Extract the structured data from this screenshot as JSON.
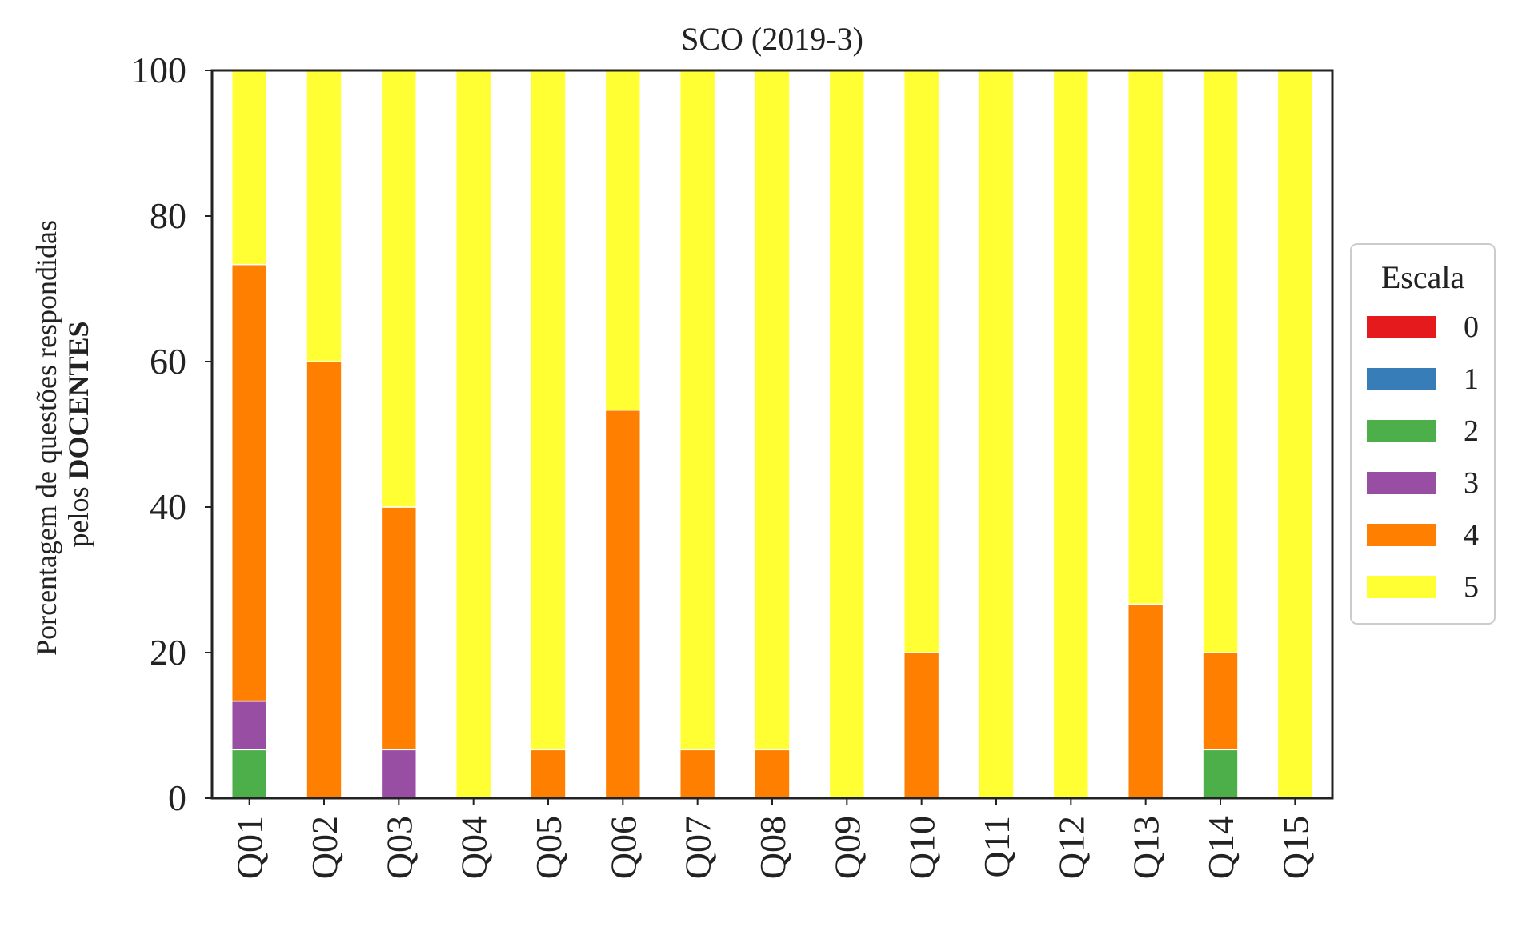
{
  "chart_data": {
    "type": "bar",
    "stacked": true,
    "title": "SCO (2019-3)",
    "ylabel_line1": "Porcentagem de questões respondidas",
    "ylabel_line2_prefix": "pelos ",
    "ylabel_line2_bold": "DOCENTES",
    "xlabel": "",
    "ylim": [
      0,
      100
    ],
    "yticks": [
      0,
      20,
      40,
      60,
      80,
      100
    ],
    "grid": false,
    "legend": {
      "title": "Escala",
      "placement": "center-right, outside plot"
    },
    "categories": [
      "Q01",
      "Q02",
      "Q03",
      "Q04",
      "Q05",
      "Q06",
      "Q07",
      "Q08",
      "Q09",
      "Q10",
      "Q11",
      "Q12",
      "Q13",
      "Q14",
      "Q15"
    ],
    "series": [
      {
        "name": "0",
        "color": "#e41a1c",
        "values": [
          0,
          0,
          0,
          0,
          0,
          0,
          0,
          0,
          0,
          0,
          0,
          0,
          0,
          0,
          0
        ]
      },
      {
        "name": "1",
        "color": "#377eb8",
        "values": [
          0,
          0,
          0,
          0,
          0,
          0,
          0,
          0,
          0,
          0,
          0,
          0,
          0,
          0,
          0
        ]
      },
      {
        "name": "2",
        "color": "#4daf4a",
        "values": [
          6.67,
          0,
          0,
          0,
          0,
          0,
          0,
          0,
          0,
          0,
          0,
          0,
          0,
          6.67,
          0
        ]
      },
      {
        "name": "3",
        "color": "#984ea3",
        "values": [
          6.67,
          0,
          6.67,
          0,
          0,
          0,
          0,
          0,
          0,
          0,
          0,
          0,
          0,
          0,
          0
        ]
      },
      {
        "name": "4",
        "color": "#ff7f00",
        "values": [
          60,
          60,
          33.33,
          0,
          6.67,
          53.33,
          6.67,
          6.67,
          0,
          20,
          0,
          0,
          26.67,
          13.33,
          0
        ]
      },
      {
        "name": "5",
        "color": "#ffff33",
        "values": [
          26.67,
          40,
          60,
          100,
          93.33,
          46.67,
          93.33,
          93.33,
          100,
          80,
          100,
          100,
          73.33,
          80,
          100
        ]
      }
    ]
  }
}
